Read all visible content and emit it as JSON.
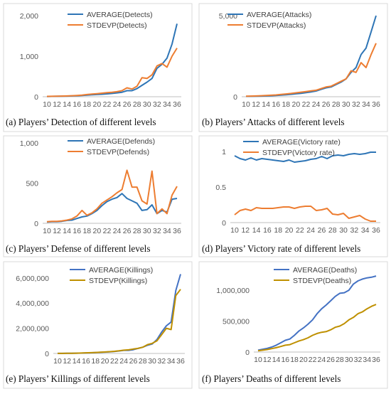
{
  "figure": {
    "panels": [
      {
        "caption": "(a) Players’ Detection of different levels"
      },
      {
        "caption": "(b) Players’ Attacks of different levels"
      },
      {
        "caption": "(c) Players’ Defense of different levels"
      },
      {
        "caption": "(d) Players’ Victory rate of different levels"
      },
      {
        "caption": "(e) Players’ Killings of different levels"
      },
      {
        "caption": "(f) Players’ Deaths of different levels"
      }
    ]
  },
  "colors": {
    "blue": "#2e75b6",
    "orange": "#ed7d31",
    "navy": "#4472c4",
    "olive": "#bf9000"
  },
  "chart_data": [
    {
      "type": "line",
      "x": [
        10,
        11,
        12,
        13,
        14,
        15,
        16,
        17,
        18,
        19,
        20,
        21,
        22,
        23,
        24,
        25,
        26,
        27,
        28,
        29,
        30,
        31,
        32,
        33,
        34,
        35,
        36
      ],
      "x_tick_labels": [
        "10",
        "12",
        "14",
        "16",
        "18",
        "20",
        "22",
        "24",
        "26",
        "28",
        "30",
        "32",
        "34",
        "36"
      ],
      "y_ticks": [
        0,
        1000,
        2000
      ],
      "y_tick_labels": [
        "0",
        "1,000",
        "2,000"
      ],
      "ylim": [
        0,
        2000
      ],
      "legend": "top-left",
      "series": [
        {
          "name": "AVERAGE(Detects)",
          "color": "#2e75b6",
          "values": [
            5,
            8,
            10,
            12,
            15,
            20,
            25,
            30,
            40,
            48,
            55,
            62,
            70,
            80,
            95,
            110,
            150,
            150,
            200,
            280,
            360,
            450,
            700,
            800,
            950,
            1300,
            1800
          ]
        },
        {
          "name": "STDEVP(Detects)",
          "color": "#ed7d31",
          "values": [
            8,
            10,
            12,
            16,
            20,
            25,
            32,
            40,
            55,
            65,
            75,
            88,
            100,
            110,
            125,
            150,
            220,
            190,
            260,
            470,
            450,
            540,
            760,
            820,
            730,
            1000,
            1200
          ]
        }
      ]
    },
    {
      "type": "line",
      "x": [
        10,
        11,
        12,
        13,
        14,
        15,
        16,
        17,
        18,
        19,
        20,
        21,
        22,
        23,
        24,
        25,
        26,
        27,
        28,
        29,
        30,
        31,
        32,
        33,
        34,
        35,
        36
      ],
      "x_tick_labels": [
        "10",
        "12",
        "14",
        "16",
        "18",
        "20",
        "22",
        "24",
        "26",
        "28",
        "30",
        "32",
        "34",
        "36"
      ],
      "y_ticks": [
        0,
        5000
      ],
      "y_tick_labels": [
        "0",
        "5,000"
      ],
      "ylim": [
        0,
        5000
      ],
      "legend": "top-left",
      "series": [
        {
          "name": "AVERAGE(Attacks)",
          "color": "#2e75b6",
          "values": [
            20,
            25,
            30,
            40,
            50,
            60,
            80,
            100,
            120,
            150,
            180,
            210,
            250,
            300,
            350,
            450,
            550,
            600,
            750,
            900,
            1100,
            1500,
            1800,
            2600,
            3000,
            4000,
            5000
          ]
        },
        {
          "name": "STDEVP(Attacks)",
          "color": "#ed7d31",
          "values": [
            30,
            40,
            50,
            60,
            80,
            90,
            110,
            140,
            170,
            200,
            240,
            280,
            320,
            360,
            400,
            500,
            600,
            650,
            800,
            950,
            1100,
            1600,
            1500,
            2100,
            1800,
            2600,
            3300
          ]
        }
      ]
    },
    {
      "type": "line",
      "x": [
        10,
        11,
        12,
        13,
        14,
        15,
        16,
        17,
        18,
        19,
        20,
        21,
        22,
        23,
        24,
        25,
        26,
        27,
        28,
        29,
        30,
        31,
        32,
        33,
        34,
        35,
        36
      ],
      "x_tick_labels": [
        "10",
        "12",
        "14",
        "16",
        "18",
        "20",
        "22",
        "24",
        "26",
        "28",
        "30",
        "32",
        "34",
        "36"
      ],
      "y_ticks": [
        0,
        500,
        1000
      ],
      "y_tick_labels": [
        "0",
        "500",
        "1,000"
      ],
      "ylim": [
        0,
        1000
      ],
      "legend": "top-left",
      "series": [
        {
          "name": "AVERAGE(Defends)",
          "color": "#2e75b6",
          "values": [
            15,
            20,
            20,
            25,
            35,
            40,
            60,
            80,
            90,
            120,
            160,
            220,
            270,
            300,
            320,
            370,
            310,
            280,
            250,
            160,
            170,
            230,
            120,
            160,
            140,
            300,
            310
          ]
        },
        {
          "name": "STDEVP(Defends)",
          "color": "#ed7d31",
          "values": [
            20,
            25,
            25,
            30,
            40,
            55,
            90,
            160,
            100,
            130,
            180,
            250,
            290,
            330,
            380,
            420,
            660,
            450,
            450,
            280,
            240,
            650,
            120,
            180,
            120,
            350,
            460
          ]
        }
      ]
    },
    {
      "type": "line",
      "x": [
        10,
        11,
        12,
        13,
        14,
        15,
        16,
        17,
        18,
        19,
        20,
        21,
        22,
        23,
        24,
        25,
        26,
        27,
        28,
        29,
        30,
        31,
        32,
        33,
        34,
        35,
        36
      ],
      "x_tick_labels": [
        "10",
        "12",
        "14",
        "16",
        "18",
        "20",
        "22",
        "24",
        "26",
        "28",
        "30",
        "32",
        "34",
        "36"
      ],
      "y_ticks": [
        0,
        0.5,
        1
      ],
      "y_tick_labels": [
        "0",
        "0.5",
        "1"
      ],
      "ylim": [
        0,
        1.1
      ],
      "legend": "top-center",
      "series": [
        {
          "name": "AVERAGE(Victory rate)",
          "color": "#2e75b6",
          "values": [
            0.94,
            0.9,
            0.88,
            0.91,
            0.88,
            0.9,
            0.89,
            0.88,
            0.87,
            0.86,
            0.88,
            0.85,
            0.86,
            0.87,
            0.89,
            0.9,
            0.93,
            0.9,
            0.94,
            0.95,
            0.94,
            0.96,
            0.97,
            0.96,
            0.97,
            0.99,
            0.99
          ]
        },
        {
          "name": "STDEVP(Victory rate)",
          "color": "#ed7d31",
          "values": [
            0.11,
            0.17,
            0.19,
            0.17,
            0.21,
            0.2,
            0.2,
            0.2,
            0.21,
            0.22,
            0.22,
            0.2,
            0.22,
            0.23,
            0.23,
            0.17,
            0.18,
            0.2,
            0.12,
            0.11,
            0.13,
            0.06,
            0.08,
            0.1,
            0.05,
            0.02,
            0.02
          ]
        }
      ]
    },
    {
      "type": "line",
      "x": [
        10,
        11,
        12,
        13,
        14,
        15,
        16,
        17,
        18,
        19,
        20,
        21,
        22,
        23,
        24,
        25,
        26,
        27,
        28,
        29,
        30,
        31,
        32,
        33,
        34,
        35,
        36
      ],
      "x_tick_labels": [
        "10",
        "12",
        "14",
        "16",
        "18",
        "20",
        "22",
        "24",
        "26",
        "28",
        "30",
        "32",
        "34",
        "36"
      ],
      "y_ticks": [
        0,
        2000000,
        4000000,
        6000000
      ],
      "y_tick_labels": [
        "0",
        "2,000,000",
        "4,000,000",
        "6,000,000"
      ],
      "ylim": [
        0,
        6500000
      ],
      "legend": "top-left",
      "series": [
        {
          "name": "AVERAGE(Killings)",
          "color": "#4472c4",
          "values": [
            5000,
            8000,
            10000,
            15000,
            20000,
            30000,
            40000,
            50000,
            70000,
            90000,
            110000,
            130000,
            160000,
            200000,
            250000,
            250000,
            300000,
            400000,
            500000,
            650000,
            750000,
            1100000,
            1700000,
            2200000,
            2500000,
            5000000,
            6300000
          ]
        },
        {
          "name": "STDEVP(Killings)",
          "color": "#bf9000",
          "values": [
            5000,
            8000,
            12000,
            18000,
            25000,
            35000,
            50000,
            60000,
            80000,
            100000,
            120000,
            140000,
            170000,
            210000,
            260000,
            290000,
            350000,
            400000,
            500000,
            700000,
            800000,
            1000000,
            1500000,
            2000000,
            1900000,
            4600000,
            5100000
          ]
        }
      ]
    },
    {
      "type": "line",
      "x": [
        10,
        11,
        12,
        13,
        14,
        15,
        16,
        17,
        18,
        19,
        20,
        21,
        22,
        23,
        24,
        25,
        26,
        27,
        28,
        29,
        30,
        31,
        32,
        33,
        34,
        35,
        36
      ],
      "x_tick_labels": [
        "10",
        "12",
        "14",
        "16",
        "18",
        "20",
        "22",
        "24",
        "26",
        "28",
        "30",
        "32",
        "34",
        "36"
      ],
      "y_ticks": [
        0,
        500000,
        1000000
      ],
      "y_tick_labels": [
        "0",
        "500,000",
        "1,000,000"
      ],
      "ylim": [
        0,
        1300000
      ],
      "legend": "top-left",
      "series": [
        {
          "name": "AVERAGE(Deaths)",
          "color": "#4472c4",
          "values": [
            30000,
            45000,
            60000,
            80000,
            110000,
            150000,
            190000,
            210000,
            270000,
            340000,
            390000,
            450000,
            520000,
            620000,
            700000,
            760000,
            830000,
            900000,
            950000,
            960000,
            1000000,
            1100000,
            1150000,
            1180000,
            1200000,
            1210000,
            1230000
          ]
        },
        {
          "name": "STDEVP(Deaths)",
          "color": "#bf9000",
          "values": [
            20000,
            30000,
            40000,
            55000,
            70000,
            90000,
            110000,
            120000,
            150000,
            180000,
            200000,
            230000,
            270000,
            300000,
            320000,
            330000,
            360000,
            400000,
            420000,
            460000,
            520000,
            560000,
            620000,
            650000,
            700000,
            740000,
            770000
          ]
        }
      ]
    }
  ]
}
